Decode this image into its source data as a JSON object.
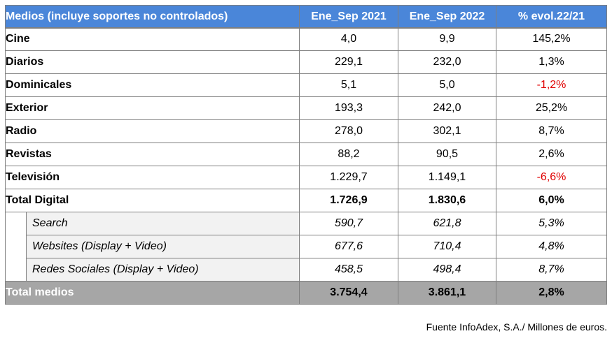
{
  "table": {
    "headers": [
      "Medios (incluye soportes no controlados)",
      "Ene_Sep 2021",
      "Ene_Sep 2022",
      "% evol.22/21"
    ],
    "rows": [
      {
        "label": "Cine",
        "v2021": "4,0",
        "v2022": "9,9",
        "evol": "145,2%"
      },
      {
        "label": "Diarios",
        "v2021": "229,1",
        "v2022": "232,0",
        "evol": "1,3%"
      },
      {
        "label": "Dominicales",
        "v2021": "5,1",
        "v2022": "5,0",
        "evol": "-1,2%"
      },
      {
        "label": "Exterior",
        "v2021": "193,3",
        "v2022": "242,0",
        "evol": "25,2%"
      },
      {
        "label": "Radio",
        "v2021": "278,0",
        "v2022": "302,1",
        "evol": "8,7%"
      },
      {
        "label": "Revistas",
        "v2021": "88,2",
        "v2022": "90,5",
        "evol": "2,6%"
      },
      {
        "label": "Televisión",
        "v2021": "1.229,7",
        "v2022": "1.149,1",
        "evol": "-6,6%"
      }
    ],
    "total_digital": {
      "label": "Total Digital",
      "v2021": "1.726,9",
      "v2022": "1.830,6",
      "evol": "6,0%"
    },
    "sub_rows": [
      {
        "label": "Search",
        "v2021": "590,7",
        "v2022": "621,8",
        "evol": "5,3%"
      },
      {
        "label": "Websites (Display + Video)",
        "v2021": "677,6",
        "v2022": "710,4",
        "evol": "4,8%"
      },
      {
        "label": "Redes Sociales (Display + Video)",
        "v2021": "458,5",
        "v2022": "498,4",
        "evol": "8,7%"
      }
    ],
    "total_medios": {
      "label": "Total medios",
      "v2021": "3.754,4",
      "v2022": "3.861,1",
      "evol": "2,8%"
    }
  },
  "source": "Fuente InfoAdex, S.A./ Millones de euros.",
  "colors": {
    "header": "#4a86d9",
    "grand_total": "#a6a6a6",
    "sub_row": "#f2f2f2",
    "negative": "#e00000"
  }
}
